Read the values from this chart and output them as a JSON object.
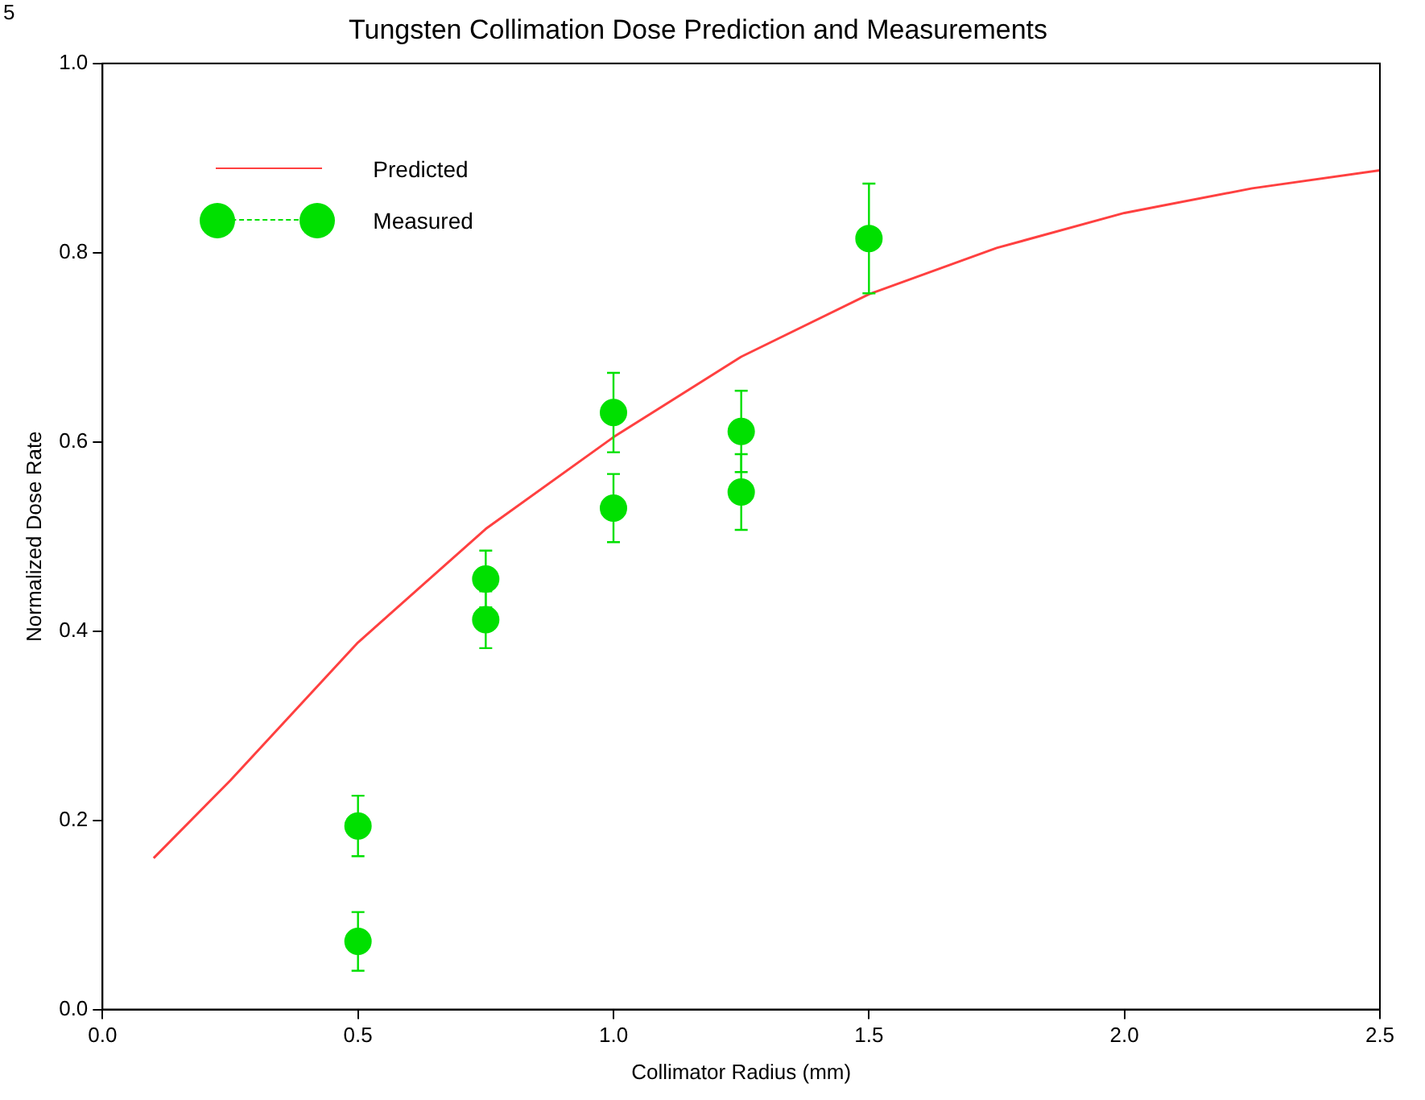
{
  "chart_data": {
    "type": "scatter",
    "title": "Tungsten Collimation Dose Prediction and Measurements",
    "xlabel": "Collimator Radius (mm)",
    "ylabel": "Normalized Dose Rate",
    "annotations": [
      "5"
    ],
    "xlim": [
      0,
      2.5
    ],
    "xticks": [
      {
        "value": 0,
        "label": "0.0"
      },
      {
        "value": 0.5,
        "label": "0.5"
      },
      {
        "value": 1,
        "label": "1.0"
      },
      {
        "value": 1.5,
        "label": "1.5"
      },
      {
        "value": 2,
        "label": "2.0"
      },
      {
        "value": 2.5,
        "label": "2.5"
      }
    ],
    "ylim": [
      0,
      1
    ],
    "yticks": [
      {
        "value": 0,
        "label": "0.0"
      },
      {
        "value": 0.2,
        "label": "0.2"
      },
      {
        "value": 0.4,
        "label": "0.4"
      },
      {
        "value": 0.6,
        "label": "0.6"
      },
      {
        "value": 0.8,
        "label": "0.8"
      },
      {
        "value": 1,
        "label": "1.0"
      }
    ],
    "grid": false,
    "legend": "top left",
    "series": [
      {
        "name": "Predicted",
        "type": "line",
        "color": "#ff4040",
        "marker": "none",
        "line_style": "solid",
        "x": [
          0.1,
          0.25,
          0.5,
          0.75,
          1.0,
          1.25,
          1.5,
          1.75,
          2.0,
          2.25,
          2.5
        ],
        "values": [
          0.16,
          0.242,
          0.388,
          0.508,
          0.605,
          0.69,
          0.756,
          0.805,
          0.842,
          0.868,
          0.887
        ]
      },
      {
        "name": "Measured",
        "color": "#00e000",
        "marker": "circle",
        "x": [
          0.5,
          0.5,
          0.75,
          0.75,
          1.0,
          1.0,
          1.25,
          1.25,
          1.5
        ],
        "values": [
          0.194,
          0.072,
          0.455,
          0.412,
          0.631,
          0.53,
          0.611,
          0.547,
          0.815
        ],
        "errors": [
          0.032,
          0.031,
          0.03,
          0.03,
          0.042,
          0.036,
          0.043,
          0.04,
          0.058
        ]
      }
    ]
  }
}
